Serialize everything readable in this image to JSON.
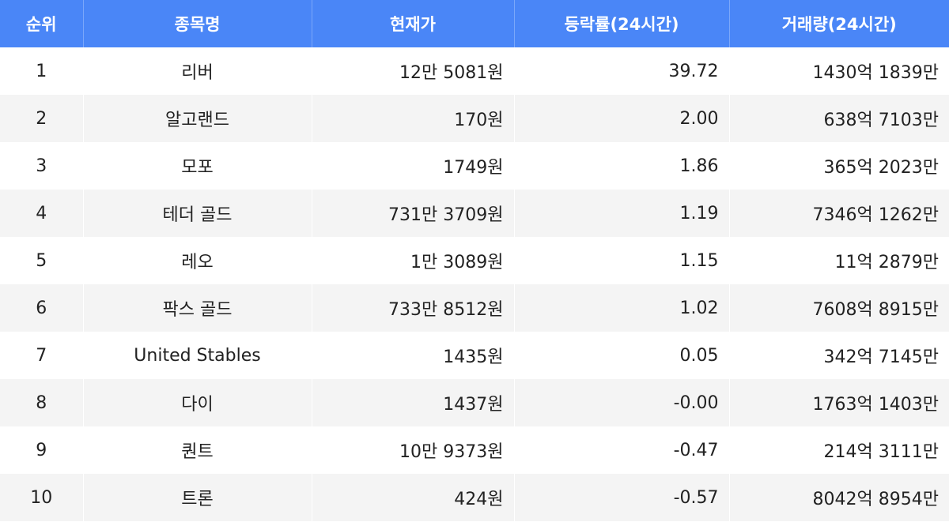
{
  "table": {
    "headers": [
      "순위",
      "종목명",
      "현재가",
      "등락률(24시간)",
      "거래량(24시간)"
    ],
    "rows": [
      {
        "rank": "1",
        "name": "리버",
        "price": "12만 5081원",
        "change": "39.72",
        "volume": "1430억 1839만"
      },
      {
        "rank": "2",
        "name": "알고랜드",
        "price": "170원",
        "change": "2.00",
        "volume": "638억 7103만"
      },
      {
        "rank": "3",
        "name": "모포",
        "price": "1749원",
        "change": "1.86",
        "volume": "365억 2023만"
      },
      {
        "rank": "4",
        "name": "테더 골드",
        "price": "731만 3709원",
        "change": "1.19",
        "volume": "7346억 1262만"
      },
      {
        "rank": "5",
        "name": "레오",
        "price": "1만 3089원",
        "change": "1.15",
        "volume": "11억 2879만"
      },
      {
        "rank": "6",
        "name": "팍스 골드",
        "price": "733만 8512원",
        "change": "1.02",
        "volume": "7608억 8915만"
      },
      {
        "rank": "7",
        "name": "United Stables",
        "price": "1435원",
        "change": "0.05",
        "volume": "342억 7145만"
      },
      {
        "rank": "8",
        "name": "다이",
        "price": "1437원",
        "change": "-0.00",
        "volume": "1763억 1403만"
      },
      {
        "rank": "9",
        "name": "퀀트",
        "price": "10만 9373원",
        "change": "-0.47",
        "volume": "214억 3111만"
      },
      {
        "rank": "10",
        "name": "트론",
        "price": "424원",
        "change": "-0.57",
        "volume": "8042억 8954만"
      }
    ]
  },
  "colors": {
    "header_bg": "#4a86f7",
    "header_text": "#ffffff",
    "stripe_bg": "#f4f4f4",
    "text": "#222222"
  }
}
